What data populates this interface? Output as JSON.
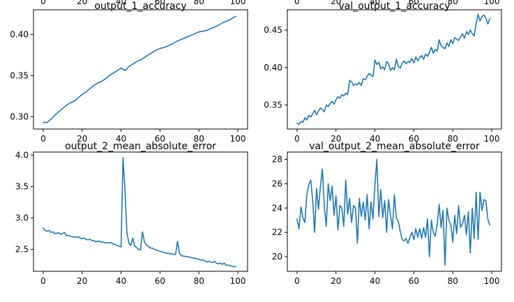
{
  "chart_data": [
    {
      "type": "line",
      "title": "output_1_accuracy",
      "xticks": [
        0,
        20,
        40,
        60,
        80,
        100
      ],
      "xlim": [
        -5,
        105
      ],
      "yticks": [
        0.3,
        0.35,
        0.4
      ],
      "ylim": [
        0.285,
        0.43
      ],
      "ytick_format": "0.00",
      "grid": false,
      "series": [
        {
          "color": "#1f77b4",
          "x": [
            0,
            2,
            4,
            6,
            8,
            10,
            12,
            14,
            16,
            18,
            20,
            22,
            24,
            26,
            28,
            30,
            32,
            34,
            36,
            38,
            40,
            41,
            42,
            44,
            46,
            48,
            50,
            52,
            54,
            56,
            58,
            60,
            62,
            64,
            66,
            68,
            70,
            72,
            74,
            76,
            78,
            80,
            82,
            84,
            86,
            88,
            90,
            92,
            94,
            96,
            98,
            99
          ],
          "y": [
            0.293,
            0.293,
            0.297,
            0.302,
            0.306,
            0.31,
            0.314,
            0.317,
            0.319,
            0.323,
            0.327,
            0.33,
            0.334,
            0.338,
            0.341,
            0.343,
            0.346,
            0.35,
            0.353,
            0.356,
            0.359,
            0.358,
            0.356,
            0.361,
            0.364,
            0.367,
            0.369,
            0.372,
            0.375,
            0.378,
            0.381,
            0.383,
            0.384,
            0.386,
            0.388,
            0.391,
            0.393,
            0.395,
            0.397,
            0.399,
            0.401,
            0.403,
            0.404,
            0.405,
            0.407,
            0.409,
            0.411,
            0.414,
            0.416,
            0.418,
            0.421,
            0.422
          ]
        }
      ]
    },
    {
      "type": "line",
      "title": "val_output_1_accuracy",
      "xticks": [
        0,
        20,
        40,
        60,
        80,
        100
      ],
      "xlim": [
        -5,
        105
      ],
      "yticks": [
        0.35,
        0.4,
        0.45
      ],
      "ylim": [
        0.318,
        0.477
      ],
      "ytick_format": "0.00",
      "grid": false,
      "series": [
        {
          "color": "#1f77b4",
          "x": [
            0,
            1,
            2,
            3,
            4,
            5,
            6,
            7,
            8,
            9,
            10,
            11,
            12,
            13,
            14,
            15,
            16,
            17,
            18,
            19,
            20,
            21,
            22,
            23,
            24,
            25,
            26,
            27,
            28,
            29,
            30,
            31,
            32,
            33,
            34,
            35,
            36,
            37,
            38,
            39,
            40,
            41,
            42,
            43,
            44,
            45,
            46,
            47,
            48,
            49,
            50,
            51,
            52,
            53,
            54,
            55,
            56,
            57,
            58,
            59,
            60,
            61,
            62,
            63,
            64,
            65,
            66,
            67,
            68,
            69,
            70,
            71,
            72,
            73,
            74,
            75,
            76,
            77,
            78,
            79,
            80,
            81,
            82,
            83,
            84,
            85,
            86,
            87,
            88,
            89,
            90,
            91,
            92,
            93,
            94,
            95,
            96,
            97,
            98,
            99
          ],
          "y": [
            0.326,
            0.324,
            0.328,
            0.327,
            0.333,
            0.33,
            0.336,
            0.334,
            0.338,
            0.343,
            0.337,
            0.342,
            0.346,
            0.344,
            0.341,
            0.35,
            0.348,
            0.352,
            0.355,
            0.351,
            0.357,
            0.361,
            0.359,
            0.364,
            0.362,
            0.366,
            0.364,
            0.383,
            0.381,
            0.376,
            0.378,
            0.377,
            0.38,
            0.376,
            0.385,
            0.384,
            0.388,
            0.392,
            0.39,
            0.388,
            0.41,
            0.404,
            0.407,
            0.398,
            0.401,
            0.397,
            0.408,
            0.405,
            0.396,
            0.4,
            0.397,
            0.411,
            0.402,
            0.399,
            0.406,
            0.409,
            0.405,
            0.408,
            0.407,
            0.412,
            0.406,
            0.414,
            0.409,
            0.413,
            0.416,
            0.411,
            0.418,
            0.415,
            0.42,
            0.427,
            0.419,
            0.424,
            0.422,
            0.437,
            0.429,
            0.427,
            0.425,
            0.433,
            0.428,
            0.437,
            0.432,
            0.44,
            0.438,
            0.436,
            0.441,
            0.445,
            0.439,
            0.448,
            0.444,
            0.45,
            0.445,
            0.442,
            0.459,
            0.471,
            0.462,
            0.468,
            0.47,
            0.466,
            0.458,
            0.465
          ]
        }
      ]
    },
    {
      "type": "line",
      "title": "output_2_mean_absolute_error",
      "xticks": [
        0,
        20,
        40,
        60,
        80,
        100
      ],
      "xlim": [
        -5,
        105
      ],
      "yticks": [
        2.5,
        3.0,
        3.5,
        4.0
      ],
      "ylim": [
        2.15,
        4.05
      ],
      "ytick_format": "0.0",
      "grid": false,
      "series": [
        {
          "color": "#1f77b4",
          "x": [
            0,
            1,
            2,
            3,
            4,
            5,
            6,
            7,
            8,
            9,
            10,
            11,
            12,
            13,
            14,
            15,
            16,
            17,
            18,
            19,
            20,
            21,
            22,
            23,
            24,
            25,
            26,
            27,
            28,
            29,
            30,
            31,
            32,
            33,
            34,
            35,
            36,
            37,
            38,
            39,
            40,
            41,
            42,
            43,
            44,
            45,
            46,
            47,
            48,
            49,
            50,
            51,
            52,
            53,
            54,
            55,
            56,
            57,
            58,
            59,
            60,
            61,
            62,
            63,
            64,
            65,
            66,
            67,
            68,
            69,
            70,
            71,
            72,
            73,
            74,
            75,
            76,
            77,
            78,
            79,
            80,
            81,
            82,
            83,
            84,
            85,
            86,
            87,
            88,
            89,
            90,
            91,
            92,
            93,
            94,
            95,
            96,
            97,
            98,
            99
          ],
          "y": [
            2.84,
            2.8,
            2.79,
            2.8,
            2.77,
            2.78,
            2.75,
            2.76,
            2.76,
            2.74,
            2.75,
            2.77,
            2.72,
            2.72,
            2.71,
            2.7,
            2.7,
            2.69,
            2.7,
            2.68,
            2.67,
            2.68,
            2.66,
            2.65,
            2.66,
            2.64,
            2.64,
            2.62,
            2.63,
            2.63,
            2.61,
            2.62,
            2.6,
            2.61,
            2.6,
            2.61,
            2.58,
            2.58,
            2.56,
            2.55,
            2.54,
            3.96,
            3.45,
            2.77,
            2.6,
            2.56,
            2.68,
            2.55,
            2.53,
            2.5,
            2.49,
            2.78,
            2.62,
            2.57,
            2.55,
            2.52,
            2.52,
            2.5,
            2.49,
            2.48,
            2.47,
            2.46,
            2.45,
            2.44,
            2.44,
            2.43,
            2.43,
            2.42,
            2.42,
            2.63,
            2.44,
            2.4,
            2.39,
            2.39,
            2.38,
            2.38,
            2.37,
            2.36,
            2.36,
            2.35,
            2.34,
            2.33,
            2.33,
            2.32,
            2.3,
            2.31,
            2.3,
            2.29,
            2.31,
            2.28,
            2.27,
            2.28,
            2.26,
            2.28,
            2.25,
            2.25,
            2.24,
            2.23,
            2.23,
            2.22
          ]
        }
      ]
    },
    {
      "type": "line",
      "title": "val_output_2_mean_absolute_error",
      "xticks": [
        0,
        20,
        40,
        60,
        80,
        100
      ],
      "xlim": [
        -5,
        105
      ],
      "yticks": [
        20,
        22,
        24,
        26,
        28
      ],
      "ylim": [
        18.8,
        28.6
      ],
      "ytick_format": "0",
      "grid": false,
      "series": [
        {
          "color": "#1f77b4",
          "x": [
            0,
            1,
            2,
            3,
            4,
            5,
            6,
            7,
            8,
            9,
            10,
            11,
            12,
            13,
            14,
            15,
            16,
            17,
            18,
            19,
            20,
            21,
            22,
            23,
            24,
            25,
            26,
            27,
            28,
            29,
            30,
            31,
            32,
            33,
            34,
            35,
            36,
            37,
            38,
            39,
            40,
            41,
            42,
            43,
            44,
            45,
            46,
            47,
            48,
            49,
            50,
            51,
            52,
            53,
            54,
            55,
            56,
            57,
            58,
            59,
            60,
            61,
            62,
            63,
            64,
            65,
            66,
            67,
            68,
            69,
            70,
            71,
            72,
            73,
            74,
            75,
            76,
            77,
            78,
            79,
            80,
            81,
            82,
            83,
            84,
            85,
            86,
            87,
            88,
            89,
            90,
            91,
            92,
            93,
            94,
            95,
            96,
            97,
            98,
            99
          ],
          "y": [
            23.1,
            22.3,
            24.1,
            23.2,
            22.8,
            25.1,
            25.9,
            26.3,
            24.7,
            22.0,
            25.6,
            23.9,
            25.8,
            27.2,
            24.1,
            22.5,
            26.0,
            24.6,
            25.8,
            23.4,
            25.0,
            22.2,
            24.2,
            24.0,
            22.5,
            26.3,
            23.5,
            24.8,
            22.8,
            24.2,
            24.0,
            21.1,
            24.8,
            23.3,
            24.5,
            23.0,
            25.1,
            22.3,
            24.5,
            23.1,
            25.9,
            28.0,
            23.3,
            25.5,
            23.2,
            24.6,
            22.0,
            24.7,
            23.4,
            22.3,
            25.1,
            23.2,
            22.9,
            22.1,
            21.4,
            21.3,
            21.5,
            21.1,
            21.6,
            22.0,
            21.4,
            22.3,
            21.6,
            22.3,
            21.5,
            22.4,
            21.6,
            23.1,
            20.0,
            23.0,
            22.0,
            21.7,
            22.7,
            24.3,
            22.4,
            23.8,
            19.3,
            24.0,
            23.0,
            22.6,
            21.2,
            23.4,
            21.9,
            24.2,
            22.4,
            22.7,
            23.4,
            21.8,
            23.7,
            20.3,
            24.0,
            21.5,
            25.3,
            21.4,
            25.3,
            23.8,
            24.7,
            24.6,
            23.1,
            22.6
          ]
        }
      ]
    }
  ]
}
